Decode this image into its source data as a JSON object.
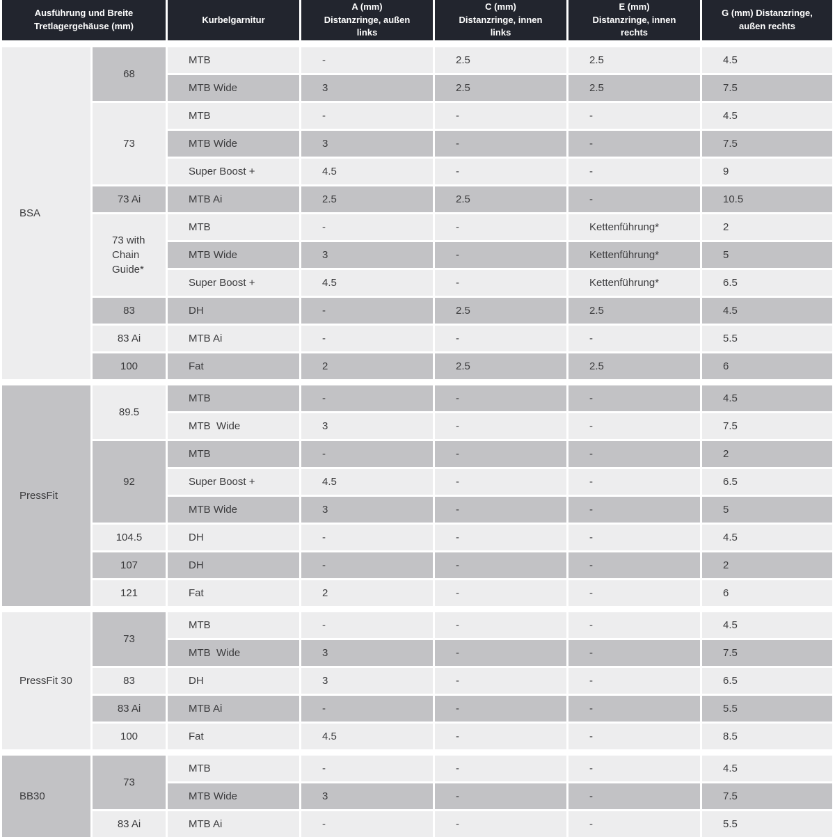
{
  "colors": {
    "header_bg": "#22252e",
    "header_text": "#ffffff",
    "row_light": "#ededee",
    "row_dark": "#c2c2c5",
    "text": "#3b3b3d",
    "page_bg": "#ffffff"
  },
  "table": {
    "header": {
      "col_housing": "Ausführung und Breite\nTretlagergehäuse (mm)",
      "col_crankset": "Kurbelgarnitur",
      "col_a": "A (mm)\nDistanzringe, außen\nlinks",
      "col_c": "C (mm)\nDistanzringe, innen\nlinks",
      "col_e": "E (mm)\nDistanzringe, innen\nrechts",
      "col_g": "G (mm) Distanzringe,\naußen rechts"
    },
    "sections": [
      {
        "label": "BSA",
        "label_shade": "light",
        "groups": [
          {
            "width": "68",
            "shade": "dark",
            "rows": [
              {
                "crank": "MTB",
                "a": "-",
                "c": "2.5",
                "e": "2.5",
                "g": "4.5",
                "shade": "light"
              },
              {
                "crank": "MTB Wide",
                "a": "3",
                "c": "2.5",
                "e": "2.5",
                "g": "7.5",
                "shade": "dark"
              }
            ]
          },
          {
            "width": "73",
            "shade": "light",
            "rows": [
              {
                "crank": "MTB",
                "a": "-",
                "c": "-",
                "e": "-",
                "g": "4.5",
                "shade": "light"
              },
              {
                "crank": "MTB Wide",
                "a": "3",
                "c": "-",
                "e": "-",
                "g": "7.5",
                "shade": "dark"
              },
              {
                "crank": "Super Boost +",
                "a": "4.5",
                "c": "-",
                "e": "-",
                "g": "9",
                "shade": "light"
              }
            ]
          },
          {
            "width": "73 Ai",
            "shade": "dark",
            "rows": [
              {
                "crank": "MTB Ai",
                "a": "2.5",
                "c": "2.5",
                "e": "-",
                "g": "10.5",
                "shade": "dark"
              }
            ]
          },
          {
            "width": "73 with Chain Guide*",
            "shade": "light",
            "align": "left",
            "rows": [
              {
                "crank": "MTB",
                "a": "-",
                "c": "-",
                "e": "Kettenführung*",
                "g": "2",
                "shade": "light"
              },
              {
                "crank": "MTB Wide",
                "a": "3",
                "c": "-",
                "e": "Kettenführung*",
                "g": "5",
                "shade": "dark"
              },
              {
                "crank": "Super Boost +",
                "a": "4.5",
                "c": "-",
                "e": "Kettenführung*",
                "g": "6.5",
                "shade": "light"
              }
            ]
          },
          {
            "width": "83",
            "shade": "dark",
            "rows": [
              {
                "crank": "DH",
                "a": "-",
                "c": "2.5",
                "e": "2.5",
                "g": "4.5",
                "shade": "dark"
              }
            ]
          },
          {
            "width": "83 Ai",
            "shade": "light",
            "rows": [
              {
                "crank": "MTB Ai",
                "a": "-",
                "c": "-",
                "e": "-",
                "g": "5.5",
                "shade": "light"
              }
            ]
          },
          {
            "width": "100",
            "shade": "dark",
            "rows": [
              {
                "crank": "Fat",
                "a": "2",
                "c": "2.5",
                "e": "2.5",
                "g": "6",
                "shade": "dark"
              }
            ]
          }
        ]
      },
      {
        "label": "PressFit",
        "label_shade": "dark",
        "groups": [
          {
            "width": "89.5",
            "shade": "light",
            "rows": [
              {
                "crank": "MTB",
                "a": "-",
                "c": "-",
                "e": "-",
                "g": "4.5",
                "shade": "dark"
              },
              {
                "crank": "MTB  Wide",
                "a": "3",
                "c": "-",
                "e": "-",
                "g": "7.5",
                "shade": "light"
              }
            ]
          },
          {
            "width": "92",
            "shade": "dark",
            "rows": [
              {
                "crank": "MTB",
                "a": "-",
                "c": "-",
                "e": "-",
                "g": "2",
                "shade": "dark"
              },
              {
                "crank": "Super Boost +",
                "a": "4.5",
                "c": "-",
                "e": "-",
                "g": "6.5",
                "shade": "light"
              },
              {
                "crank": "MTB Wide",
                "a": "3",
                "c": "-",
                "e": "-",
                "g": "5",
                "shade": "dark"
              }
            ]
          },
          {
            "width": "104.5",
            "shade": "light",
            "rows": [
              {
                "crank": "DH",
                "a": "-",
                "c": "-",
                "e": "-",
                "g": "4.5",
                "shade": "light"
              }
            ]
          },
          {
            "width": "107",
            "shade": "dark",
            "rows": [
              {
                "crank": "DH",
                "a": "-",
                "c": "-",
                "e": "-",
                "g": "2",
                "shade": "dark"
              }
            ]
          },
          {
            "width": "121",
            "shade": "light",
            "rows": [
              {
                "crank": "Fat",
                "a": "2",
                "c": "-",
                "e": "-",
                "g": "6",
                "shade": "light"
              }
            ]
          }
        ]
      },
      {
        "label": "PressFit 30",
        "label_shade": "light",
        "groups": [
          {
            "width": "73",
            "shade": "dark",
            "rows": [
              {
                "crank": "MTB",
                "a": "-",
                "c": "-",
                "e": "-",
                "g": "4.5",
                "shade": "light"
              },
              {
                "crank": "MTB  Wide",
                "a": "3",
                "c": "-",
                "e": "-",
                "g": "7.5",
                "shade": "dark"
              }
            ]
          },
          {
            "width": "83",
            "shade": "light",
            "rows": [
              {
                "crank": "DH",
                "a": "3",
                "c": "-",
                "e": "-",
                "g": "6.5",
                "shade": "light"
              }
            ]
          },
          {
            "width": "83 Ai",
            "shade": "dark",
            "rows": [
              {
                "crank": "MTB Ai",
                "a": "-",
                "c": "-",
                "e": "-",
                "g": "5.5",
                "shade": "dark"
              }
            ]
          },
          {
            "width": "100",
            "shade": "light",
            "rows": [
              {
                "crank": "Fat",
                "a": "4.5",
                "c": "-",
                "e": "-",
                "g": "8.5",
                "shade": "light"
              }
            ]
          }
        ]
      },
      {
        "label": "BB30",
        "label_shade": "dark",
        "groups": [
          {
            "width": "73",
            "shade": "dark",
            "rows": [
              {
                "crank": "MTB",
                "a": "-",
                "c": "-",
                "e": "-",
                "g": "4.5",
                "shade": "light"
              },
              {
                "crank": "MTB Wide",
                "a": "3",
                "c": "-",
                "e": "-",
                "g": "7.5",
                "shade": "dark"
              }
            ]
          },
          {
            "width": "83 Ai",
            "shade": "light",
            "rows": [
              {
                "crank": "MTB Ai",
                "a": "-",
                "c": "-",
                "e": "-",
                "g": "5.5",
                "shade": "light"
              }
            ]
          }
        ]
      }
    ]
  }
}
